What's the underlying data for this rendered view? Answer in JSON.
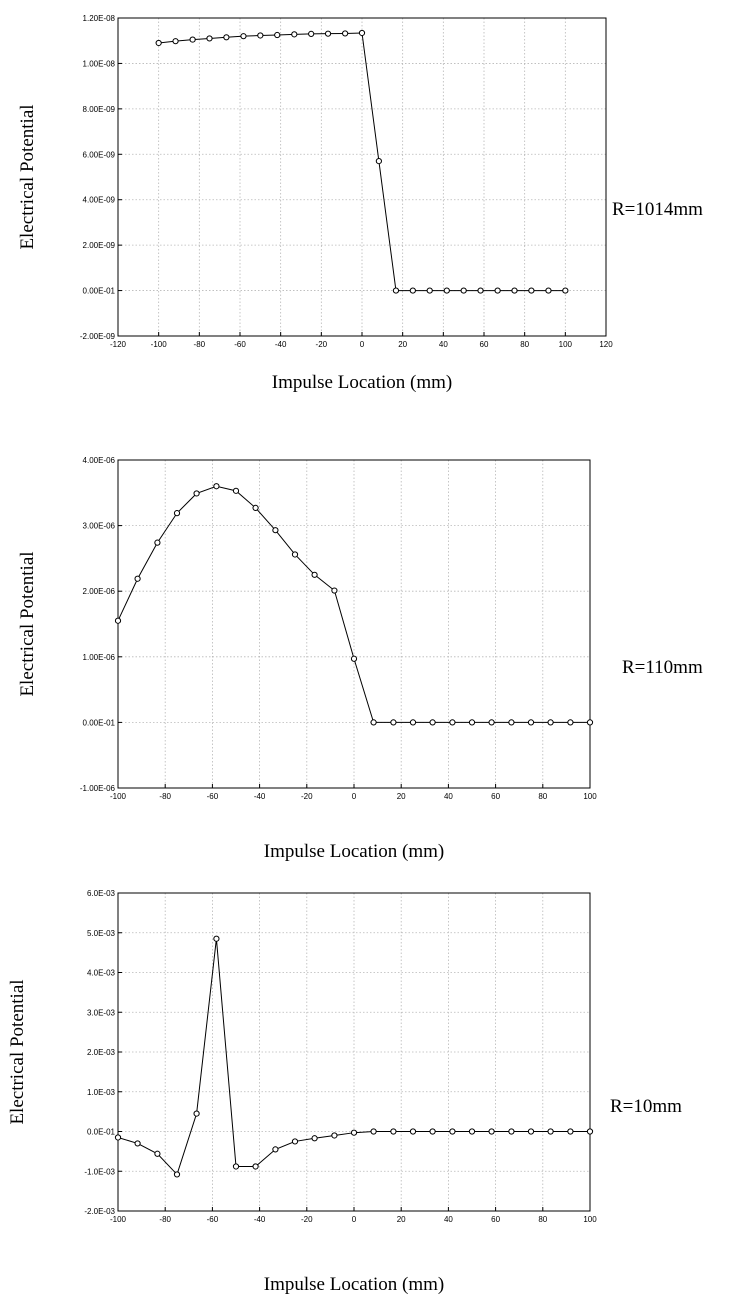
{
  "chart_data": [
    {
      "type": "line",
      "annotation": "R=1014mm",
      "xlabel": "Impulse Location (mm)",
      "ylabel": "Electrical Potential",
      "xlim": [
        -120,
        120
      ],
      "ylim": [
        -2e-09,
        1.2e-08
      ],
      "x_ticks": [
        -120,
        -100,
        -80,
        -60,
        -40,
        -20,
        0,
        20,
        40,
        60,
        80,
        100,
        120
      ],
      "x_tick_labels": [
        "-120",
        "-100",
        "-80",
        "-60",
        "-40",
        "-20",
        "0",
        "20",
        "40",
        "60",
        "80",
        "100",
        "120"
      ],
      "y_ticks": [
        -2e-09,
        0,
        2e-09,
        4e-09,
        6e-09,
        8e-09,
        1e-08,
        1.2e-08
      ],
      "y_tick_labels": [
        "-2.00E-09",
        "0.00E-01",
        "2.00E-09",
        "4.00E-09",
        "6.00E-09",
        "8.00E-09",
        "1.00E-08",
        "1.20E-08"
      ],
      "grid": true,
      "x": [
        -100,
        -91.7,
        -83.3,
        -75,
        -66.7,
        -58.3,
        -50,
        -41.7,
        -33.3,
        -25,
        -16.7,
        -8.3,
        0,
        8.3,
        16.7,
        25,
        33.3,
        41.7,
        50,
        58.3,
        66.7,
        75,
        83.3,
        91.7,
        100
      ],
      "y": [
        1.09e-08,
        1.098e-08,
        1.105e-08,
        1.11e-08,
        1.115e-08,
        1.12e-08,
        1.123e-08,
        1.125e-08,
        1.128e-08,
        1.13e-08,
        1.131e-08,
        1.132e-08,
        1.134e-08,
        5.7e-09,
        0,
        0,
        0,
        0,
        0,
        0,
        0,
        0,
        0,
        0,
        0
      ]
    },
    {
      "type": "line",
      "annotation": "R=110mm",
      "xlabel": "Impulse Location (mm)",
      "ylabel": "Electrical Potential",
      "xlim": [
        -100,
        100
      ],
      "ylim": [
        -1e-06,
        4e-06
      ],
      "x_ticks": [
        -100,
        -80,
        -60,
        -40,
        -20,
        0,
        20,
        40,
        60,
        80,
        100
      ],
      "x_tick_labels": [
        "-100",
        "-80",
        "-60",
        "-40",
        "-20",
        "0",
        "20",
        "40",
        "60",
        "80",
        "100"
      ],
      "y_ticks": [
        -1e-06,
        0,
        1e-06,
        2e-06,
        3e-06,
        4e-06
      ],
      "y_tick_labels": [
        "-1.00E-06",
        "0.00E-01",
        "1.00E-06",
        "2.00E-06",
        "3.00E-06",
        "4.00E-06"
      ],
      "grid": true,
      "x": [
        -100,
        -91.7,
        -83.3,
        -75,
        -66.7,
        -58.3,
        -50,
        -41.7,
        -33.3,
        -25,
        -16.7,
        -8.3,
        0,
        8.3,
        16.7,
        25,
        33.3,
        41.7,
        50,
        58.3,
        66.7,
        75,
        83.3,
        91.7,
        100
      ],
      "y": [
        1.55e-06,
        2.19e-06,
        2.74e-06,
        3.19e-06,
        3.49e-06,
        3.6e-06,
        3.53e-06,
        3.27e-06,
        2.93e-06,
        2.56e-06,
        2.25e-06,
        2.01e-06,
        9.7e-07,
        0,
        0,
        0,
        0,
        0,
        0,
        0,
        0,
        0,
        0,
        0,
        0
      ]
    },
    {
      "type": "line",
      "annotation": "R=10mm",
      "xlabel": "Impulse Location (mm)",
      "ylabel": "Electrical Potential",
      "xlim": [
        -100,
        100
      ],
      "ylim": [
        -0.002,
        0.006
      ],
      "x_ticks": [
        -100,
        -80,
        -60,
        -40,
        -20,
        0,
        20,
        40,
        60,
        80,
        100
      ],
      "x_tick_labels": [
        "-100",
        "-80",
        "-60",
        "-40",
        "-20",
        "0",
        "20",
        "40",
        "60",
        "80",
        "100"
      ],
      "y_ticks": [
        -0.002,
        -0.001,
        0,
        0.001,
        0.002,
        0.003,
        0.004,
        0.005,
        0.006
      ],
      "y_tick_labels": [
        "-2.0E-03",
        "-1.0E-03",
        "0.0E-01",
        "1.0E-03",
        "2.0E-03",
        "3.0E-03",
        "4.0E-03",
        "5.0E-03",
        "6.0E-03"
      ],
      "grid": true,
      "x": [
        -100,
        -91.7,
        -83.3,
        -75,
        -66.7,
        -58.3,
        -50,
        -41.7,
        -33.3,
        -25,
        -16.7,
        -8.3,
        0,
        8.3,
        16.7,
        25,
        33.3,
        41.7,
        50,
        58.3,
        66.7,
        75,
        83.3,
        91.7,
        100
      ],
      "y": [
        -0.00015,
        -0.0003,
        -0.00056,
        -0.00108,
        0.00045,
        0.00485,
        -0.00088,
        -0.00088,
        -0.00045,
        -0.00025,
        -0.00017,
        -0.0001,
        -3e-05,
        0,
        0,
        0,
        0,
        0,
        0,
        0,
        0,
        0,
        0,
        0,
        0
      ]
    }
  ]
}
